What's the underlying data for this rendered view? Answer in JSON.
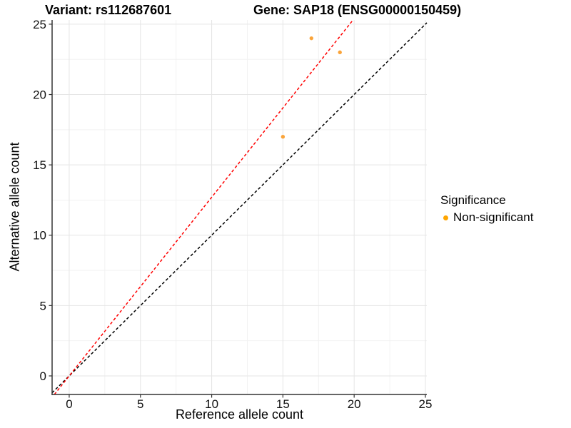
{
  "titles": {
    "left": "Variant: rs112687601",
    "right": "Gene: SAP18 (ENSG00000150459)"
  },
  "chart_data": {
    "type": "scatter",
    "xlabel": "Reference allele count",
    "ylabel": "Alternative allele count",
    "xlim": [
      -1.2,
      25.1
    ],
    "ylim": [
      -1.32,
      25.3
    ],
    "x_ticks": [
      0,
      5,
      10,
      15,
      20,
      25
    ],
    "y_ticks": [
      0,
      5,
      10,
      15,
      20,
      25
    ],
    "x_minor_ticks": [
      2.5,
      7.5,
      12.5,
      17.5,
      22.5
    ],
    "y_minor_ticks": [
      2.5,
      7.5,
      12.5,
      17.5,
      22.5
    ],
    "grid": true,
    "points": [
      {
        "x": 17,
        "y": 24,
        "series": "Non-significant"
      },
      {
        "x": 19,
        "y": 23,
        "series": "Non-significant"
      },
      {
        "x": 15,
        "y": 17,
        "series": "Non-significant"
      }
    ],
    "lines": [
      {
        "name": "identity-line",
        "slope": 1,
        "intercept": 0,
        "color": "#000000",
        "style": "dashed"
      },
      {
        "name": "allelic-ratio-line",
        "slope": 1.27,
        "intercept": 0,
        "color": "#FF0000",
        "style": "dashed"
      }
    ],
    "legend": {
      "position": "right",
      "title": "Significance",
      "entries": [
        {
          "label": "Non-significant",
          "color": "#FFA500"
        }
      ]
    },
    "colors": {
      "point": "#FAA43A",
      "grid_major": "#E5E5E5",
      "grid_minor": "#F2F2F2",
      "axis_line": "#333333",
      "tick_label": "#111111",
      "background": "#FFFFFF"
    }
  }
}
